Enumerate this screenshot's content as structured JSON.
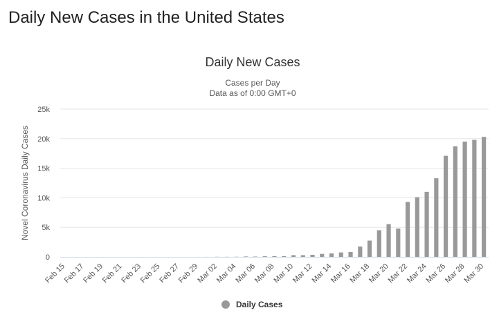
{
  "page": {
    "title": "Daily New Cases in the United States"
  },
  "chart_data": {
    "type": "bar",
    "title": "Daily New Cases",
    "subtitle_lines": [
      "Cases per Day",
      "Data as of 0:00 GMT+0"
    ],
    "ylabel": "Novel Coronavirus Daily Cases",
    "xlabel": "",
    "ylim": [
      0,
      25000
    ],
    "yticks": [
      {
        "value": 0,
        "label": "0"
      },
      {
        "value": 5000,
        "label": "5k"
      },
      {
        "value": 10000,
        "label": "10k"
      },
      {
        "value": 15000,
        "label": "15k"
      },
      {
        "value": 20000,
        "label": "20k"
      },
      {
        "value": 25000,
        "label": "25k"
      }
    ],
    "grid": true,
    "bar_color": "#999999",
    "grid_color": "#e6e6e6",
    "legend": {
      "placement": "bottom-center",
      "label": "Daily Cases",
      "color": "#999999"
    },
    "categories": [
      "Feb 15",
      "Feb 16",
      "Feb 17",
      "Feb 18",
      "Feb 19",
      "Feb 20",
      "Feb 21",
      "Feb 22",
      "Feb 23",
      "Feb 24",
      "Feb 25",
      "Feb 26",
      "Feb 27",
      "Feb 28",
      "Feb 29",
      "Mar 01",
      "Mar 02",
      "Mar 03",
      "Mar 04",
      "Mar 05",
      "Mar 06",
      "Mar 07",
      "Mar 08",
      "Mar 09",
      "Mar 10",
      "Mar 11",
      "Mar 12",
      "Mar 13",
      "Mar 14",
      "Mar 15",
      "Mar 16",
      "Mar 17",
      "Mar 18",
      "Mar 19",
      "Mar 20",
      "Mar 21",
      "Mar 22",
      "Mar 23",
      "Mar 24",
      "Mar 25",
      "Mar 26",
      "Mar 27",
      "Mar 28",
      "Mar 29",
      "Mar 30"
    ],
    "x_tick_labels": [
      "Feb 15",
      "Feb 17",
      "Feb 19",
      "Feb 21",
      "Feb 23",
      "Feb 25",
      "Feb 27",
      "Feb 29",
      "Mar 02",
      "Mar 04",
      "Mar 06",
      "Mar 08",
      "Mar 10",
      "Mar 12",
      "Mar 14",
      "Mar 16",
      "Mar 18",
      "Mar 20",
      "Mar 22",
      "Mar 24",
      "Mar 26",
      "Mar 28",
      "Mar 30"
    ],
    "series": [
      {
        "name": "Daily Cases",
        "values": [
          0,
          0,
          0,
          0,
          0,
          0,
          1,
          0,
          0,
          0,
          0,
          0,
          1,
          0,
          4,
          8,
          22,
          19,
          27,
          73,
          58,
          105,
          116,
          121,
          291,
          287,
          351,
          511,
          587,
          745,
          831,
          1748,
          2747,
          4510,
          5540,
          4800,
          9300,
          10100,
          11000,
          13300,
          17100,
          18700,
          19500,
          19800,
          20300
        ]
      }
    ]
  }
}
